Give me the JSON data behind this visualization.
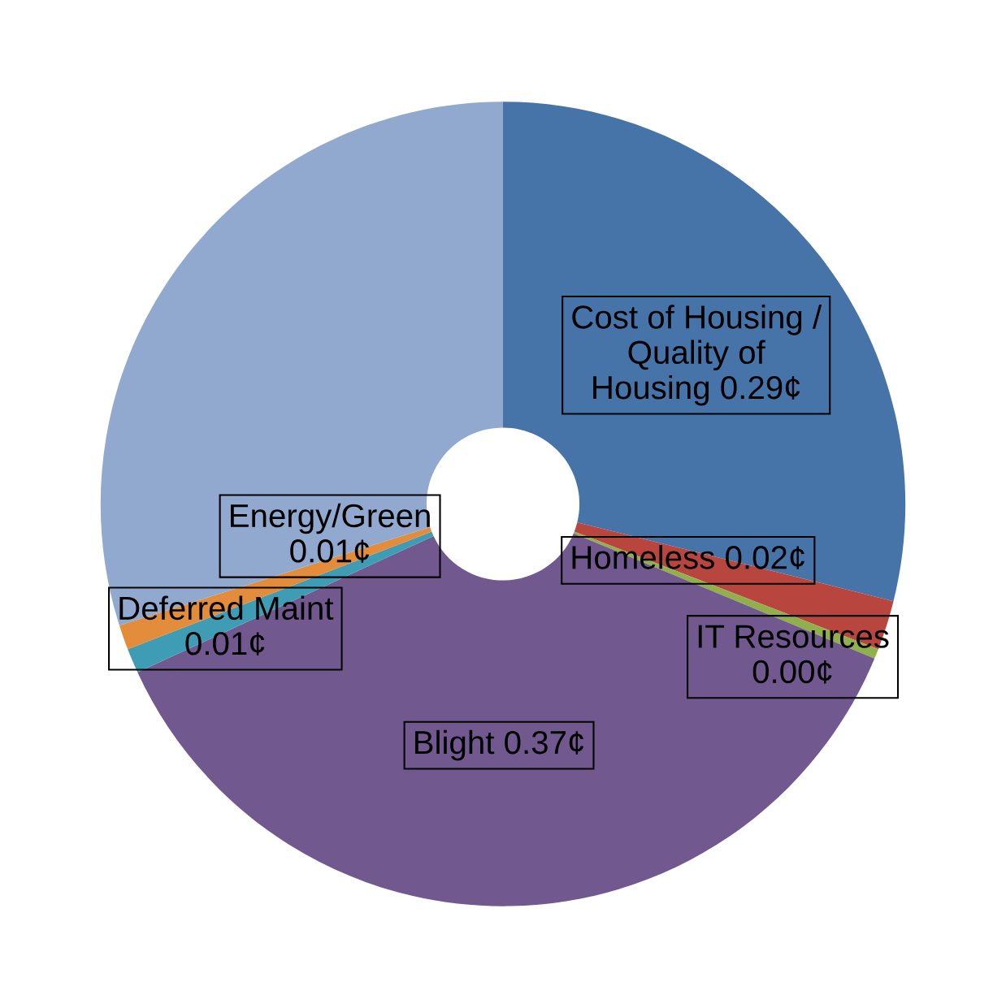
{
  "chart_data": {
    "type": "donut",
    "categories": [
      "Cost of Housing / Quality of Housing",
      "Homeless",
      "IT Resources",
      "Blight",
      "Deferred Maint",
      "Energy/Green",
      null
    ],
    "values": [
      0.29,
      0.02,
      0.004,
      0.37,
      0.01,
      0.01,
      0.3
    ],
    "value_labels": [
      "0.29¢",
      "0.02¢",
      "0.00¢",
      "0.37¢",
      "0.01¢",
      "0.01¢",
      null
    ],
    "colors": [
      "#4674a9",
      "#b8463f",
      "#8fb04a",
      "#71588f",
      "#3f9cb5",
      "#e38c3b",
      "#92a9cf"
    ],
    "legend": false
  }
}
